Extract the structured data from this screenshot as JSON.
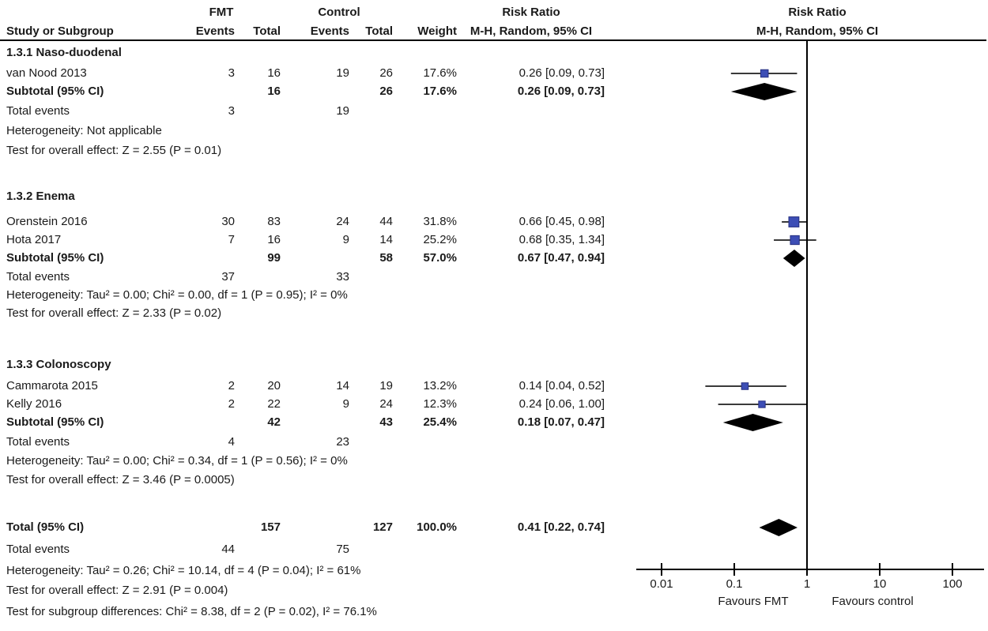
{
  "header": {
    "group1": "FMT",
    "group2": "Control",
    "col_study": "Study or Subgroup",
    "col_events": "Events",
    "col_total": "Total",
    "col_weight": "Weight",
    "col_rr_title": "Risk Ratio",
    "col_rr_sub": "M-H, Random, 95% CI"
  },
  "colors": {
    "square": "#3d4eb5",
    "square_border": "#262f80",
    "diamond": "#000000",
    "ci_line": "#3a3a3a",
    "axis": "#000000",
    "text": "#1a1a1a"
  },
  "chart_data": {
    "type": "forest",
    "effect_measure": "Risk Ratio",
    "method": "M-H, Random, 95% CI",
    "x_axis": {
      "scale": "log",
      "tick_values": [
        0.01,
        0.1,
        1,
        10,
        100
      ],
      "tick_labels": [
        "0.01",
        "0.1",
        "1",
        "10",
        "100"
      ],
      "left_label": "Favours FMT",
      "right_label": "Favours control"
    },
    "labels": {
      "subtotal": "Subtotal (95% CI)",
      "total": "Total (95% CI)",
      "total_events": "Total events"
    },
    "subgroups": [
      {
        "name": "1.3.1 Naso-duodenal",
        "studies": [
          {
            "study": "van Nood 2013",
            "fmt_events": "3",
            "fmt_total": "16",
            "control_events": "19",
            "control_total": "26",
            "weight": "17.6%",
            "weight_pct": 17.6,
            "rr": 0.26,
            "ci_low": 0.09,
            "ci_high": 0.73,
            "rr_label": "0.26 [0.09, 0.73]"
          }
        ],
        "subtotal": {
          "fmt_total": "16",
          "control_total": "26",
          "weight": "17.6%",
          "rr": 0.26,
          "ci_low": 0.09,
          "ci_high": 0.73,
          "rr_label": "0.26 [0.09, 0.73]"
        },
        "total_events": {
          "fmt": "3",
          "control": "19"
        },
        "heterogeneity": "Heterogeneity: Not applicable",
        "overall_effect": "Test for overall effect: Z = 2.55 (P = 0.01)"
      },
      {
        "name": "1.3.2 Enema",
        "studies": [
          {
            "study": "Orenstein 2016",
            "fmt_events": "30",
            "fmt_total": "83",
            "control_events": "24",
            "control_total": "44",
            "weight": "31.8%",
            "weight_pct": 31.8,
            "rr": 0.66,
            "ci_low": 0.45,
            "ci_high": 0.98,
            "rr_label": "0.66 [0.45, 0.98]"
          },
          {
            "study": "Hota 2017",
            "fmt_events": "7",
            "fmt_total": "16",
            "control_events": "9",
            "control_total": "14",
            "weight": "25.2%",
            "weight_pct": 25.2,
            "rr": 0.68,
            "ci_low": 0.35,
            "ci_high": 1.34,
            "rr_label": "0.68 [0.35, 1.34]"
          }
        ],
        "subtotal": {
          "fmt_total": "99",
          "control_total": "58",
          "weight": "57.0%",
          "rr": 0.67,
          "ci_low": 0.47,
          "ci_high": 0.94,
          "rr_label": "0.67 [0.47, 0.94]"
        },
        "total_events": {
          "fmt": "37",
          "control": "33"
        },
        "heterogeneity": "Heterogeneity: Tau² = 0.00; Chi² = 0.00, df = 1 (P = 0.95); I² = 0%",
        "overall_effect": "Test for overall effect: Z = 2.33 (P = 0.02)"
      },
      {
        "name": "1.3.3 Colonoscopy",
        "studies": [
          {
            "study": "Cammarota 2015",
            "fmt_events": "2",
            "fmt_total": "20",
            "control_events": "14",
            "control_total": "19",
            "weight": "13.2%",
            "weight_pct": 13.2,
            "rr": 0.14,
            "ci_low": 0.04,
            "ci_high": 0.52,
            "rr_label": "0.14 [0.04, 0.52]"
          },
          {
            "study": "Kelly 2016",
            "fmt_events": "2",
            "fmt_total": "22",
            "control_events": "9",
            "control_total": "24",
            "weight": "12.3%",
            "weight_pct": 12.3,
            "rr": 0.24,
            "ci_low": 0.06,
            "ci_high": 1.0,
            "rr_label": "0.24 [0.06, 1.00]"
          }
        ],
        "subtotal": {
          "fmt_total": "42",
          "control_total": "43",
          "weight": "25.4%",
          "rr": 0.18,
          "ci_low": 0.07,
          "ci_high": 0.47,
          "rr_label": "0.18 [0.07, 0.47]"
        },
        "total_events": {
          "fmt": "4",
          "control": "23"
        },
        "heterogeneity": "Heterogeneity: Tau² = 0.00; Chi² = 0.34, df = 1 (P = 0.56); I² = 0%",
        "overall_effect": "Test for overall effect: Z = 3.46 (P = 0.0005)"
      }
    ],
    "total": {
      "fmt_total": "157",
      "control_total": "127",
      "weight": "100.0%",
      "rr": 0.41,
      "ci_low": 0.22,
      "ci_high": 0.74,
      "rr_label": "0.41 [0.22, 0.74]",
      "total_events": {
        "fmt": "44",
        "control": "75"
      },
      "heterogeneity": "Heterogeneity: Tau² = 0.26; Chi² = 10.14, df = 4 (P = 0.04); I² = 61%",
      "overall_effect": "Test for overall effect: Z = 2.91 (P = 0.004)",
      "subgroup_differences": "Test for subgroup differences: Chi² = 8.38, df = 2 (P = 0.02), I² = 76.1%"
    }
  }
}
